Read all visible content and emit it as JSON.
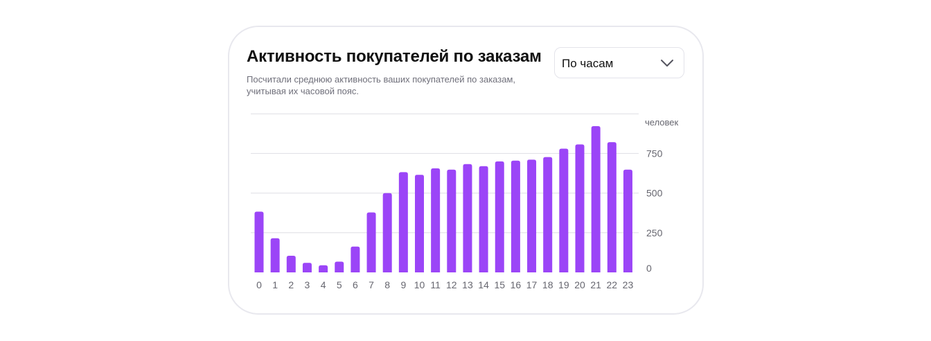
{
  "card": {
    "title": "Активность покупателей по заказам",
    "subtitle": "Посчитали среднюю активность ваших покупателей по заказам, учитывая их часовой пояс."
  },
  "period_select": {
    "selected": "По часам",
    "icon": "chevron-down-icon"
  },
  "colors": {
    "bar": "#9b45f7",
    "grid": "#dedee4",
    "tick_text": "#66666f"
  },
  "chart_data": {
    "type": "bar",
    "categories": [
      "0",
      "1",
      "2",
      "3",
      "4",
      "5",
      "6",
      "7",
      "8",
      "9",
      "10",
      "11",
      "12",
      "13",
      "14",
      "15",
      "16",
      "17",
      "18",
      "19",
      "20",
      "21",
      "22",
      "23"
    ],
    "values": [
      383,
      215,
      105,
      60,
      45,
      68,
      163,
      378,
      500,
      632,
      615,
      656,
      648,
      683,
      670,
      700,
      705,
      711,
      727,
      780,
      807,
      922,
      821,
      648
    ],
    "ylabel": "человек",
    "yticks": [
      0,
      250,
      500,
      750
    ],
    "ylim": [
      0,
      1000
    ],
    "grid": true,
    "legend": null
  }
}
